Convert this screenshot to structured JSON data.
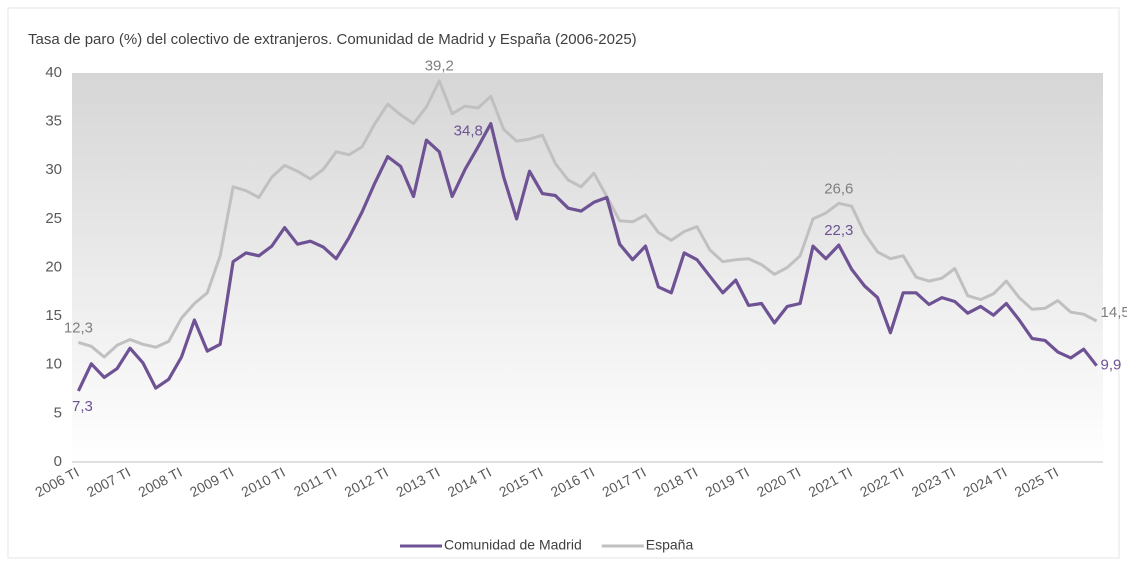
{
  "chart_data": {
    "type": "line",
    "title": "Tasa de paro (%) del colectivo de extranjeros. Comunidad de Madrid y España (2006-2025)",
    "categories": [
      "2006 TI",
      null,
      null,
      null,
      "2007 TI",
      null,
      null,
      null,
      "2008 TI",
      null,
      null,
      null,
      "2009 TI",
      null,
      null,
      null,
      "2010 TI",
      null,
      null,
      null,
      "2011 TI",
      null,
      null,
      null,
      "2012 TI",
      null,
      null,
      null,
      "2013 TI",
      null,
      null,
      null,
      "2014 TI",
      null,
      null,
      null,
      "2015 TI",
      null,
      null,
      null,
      "2016 TI",
      null,
      null,
      null,
      "2017 TI",
      null,
      null,
      null,
      "2018 TI",
      null,
      null,
      null,
      "2019 TI",
      null,
      null,
      null,
      "2020 TI",
      null,
      null,
      null,
      "2021 TI",
      null,
      null,
      null,
      "2022 TI",
      null,
      null,
      null,
      "2023 TI",
      null,
      null,
      null,
      "2024 TI",
      null,
      null,
      null,
      "2025 TI",
      null,
      null,
      null
    ],
    "series": [
      {
        "name": "Comunidad de Madrid",
        "color": "#6e5294",
        "values": [
          7.3,
          10.1,
          8.7,
          9.6,
          11.7,
          10.2,
          7.6,
          8.5,
          10.8,
          14.6,
          11.4,
          12.1,
          20.6,
          21.5,
          21.2,
          22.2,
          24.1,
          22.4,
          22.7,
          22.1,
          20.9,
          23.1,
          25.7,
          28.7,
          31.4,
          30.4,
          27.3,
          33.1,
          31.9,
          27.3,
          30.1,
          32.4,
          34.8,
          29.3,
          25.0,
          29.9,
          27.6,
          27.4,
          26.1,
          25.8,
          26.7,
          27.2,
          22.4,
          20.8,
          22.2,
          18.0,
          17.4,
          21.5,
          20.8,
          19.1,
          17.4,
          18.7,
          16.1,
          16.3,
          14.3,
          16.0,
          16.3,
          22.2,
          20.9,
          22.3,
          19.8,
          18.1,
          16.9,
          13.3,
          17.4,
          17.4,
          16.2,
          16.9,
          16.5,
          15.3,
          16.0,
          15.1,
          16.3,
          14.6,
          12.7,
          12.5,
          11.3,
          10.7,
          11.6,
          9.9
        ],
        "value_labels": [
          "7,3",
          null,
          null,
          null,
          null,
          null,
          null,
          null,
          null,
          null,
          null,
          null,
          null,
          null,
          null,
          null,
          null,
          null,
          null,
          null,
          null,
          null,
          null,
          null,
          null,
          null,
          null,
          null,
          null,
          null,
          null,
          null,
          "34,8",
          null,
          null,
          null,
          null,
          null,
          null,
          null,
          null,
          null,
          null,
          null,
          null,
          null,
          null,
          null,
          null,
          null,
          null,
          null,
          null,
          null,
          null,
          null,
          null,
          null,
          null,
          "22,3",
          null,
          null,
          null,
          null,
          null,
          null,
          null,
          null,
          null,
          null,
          null,
          null,
          null,
          null,
          null,
          null,
          null,
          null,
          null,
          "9,9"
        ]
      },
      {
        "name": "España",
        "color": "#c0c0c0",
        "values": [
          12.3,
          11.9,
          10.8,
          12.0,
          12.6,
          12.1,
          11.8,
          12.4,
          14.8,
          16.3,
          17.4,
          21.2,
          28.3,
          27.9,
          27.2,
          29.3,
          30.5,
          29.9,
          29.1,
          30.1,
          31.9,
          31.6,
          32.4,
          34.8,
          36.8,
          35.7,
          34.8,
          36.5,
          39.2,
          35.8,
          36.6,
          36.4,
          37.6,
          34.2,
          33.0,
          33.2,
          33.6,
          30.7,
          29.0,
          28.3,
          29.7,
          27.3,
          24.8,
          24.7,
          25.4,
          23.6,
          22.8,
          23.7,
          24.2,
          21.8,
          20.6,
          20.8,
          20.9,
          20.3,
          19.3,
          20.0,
          21.2,
          25.0,
          25.6,
          26.6,
          26.3,
          23.5,
          21.6,
          20.9,
          21.2,
          19.0,
          18.6,
          18.9,
          19.9,
          17.1,
          16.7,
          17.3,
          18.6,
          16.9,
          15.7,
          15.8,
          16.6,
          15.4,
          15.2,
          14.5
        ],
        "value_labels": [
          "12,3",
          null,
          null,
          null,
          null,
          null,
          null,
          null,
          null,
          null,
          null,
          null,
          null,
          null,
          null,
          null,
          null,
          null,
          null,
          null,
          null,
          null,
          null,
          null,
          null,
          null,
          null,
          null,
          "39,2",
          null,
          null,
          null,
          null,
          null,
          null,
          null,
          null,
          null,
          null,
          null,
          null,
          null,
          null,
          null,
          null,
          null,
          null,
          null,
          null,
          null,
          null,
          null,
          null,
          null,
          null,
          null,
          null,
          null,
          null,
          "26,6",
          null,
          null,
          null,
          null,
          null,
          null,
          null,
          null,
          null,
          null,
          null,
          null,
          null,
          null,
          null,
          null,
          null,
          null,
          null,
          "14,5"
        ]
      }
    ],
    "ylim": [
      0,
      40
    ],
    "yticks": [
      0,
      5,
      10,
      15,
      20,
      25,
      30,
      35,
      40
    ],
    "grid": false,
    "legend": "bottom"
  }
}
